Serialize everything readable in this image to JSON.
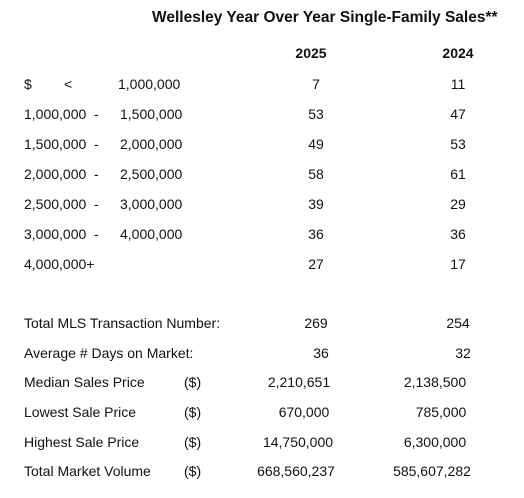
{
  "title": "Wellesley Year Over Year Single-Family Sales**",
  "columns": [
    "2025",
    "2024"
  ],
  "price_ranges": [
    {
      "low": "$",
      "sep": "<",
      "high": "1,000,000",
      "v2025": "7",
      "v2024": "11"
    },
    {
      "low": "1,000,000",
      "sep": "-",
      "high": "1,500,000",
      "v2025": "53",
      "v2024": "47"
    },
    {
      "low": "1,500,000",
      "sep": "-",
      "high": "2,000,000",
      "v2025": "49",
      "v2024": "53"
    },
    {
      "low": "2,000,000",
      "sep": "-",
      "high": "2,500,000",
      "v2025": "58",
      "v2024": "61"
    },
    {
      "low": "2,500,000",
      "sep": "-",
      "high": "3,000,000",
      "v2025": "39",
      "v2024": "29"
    },
    {
      "low": "3,000,000",
      "sep": "-",
      "high": "4,000,000",
      "v2025": "36",
      "v2024": "36"
    },
    {
      "low": "4,000,000+",
      "sep": "",
      "high": "",
      "v2025": "27",
      "v2024": "17"
    }
  ],
  "summary": [
    {
      "label": "Total MLS Transaction Number:",
      "unit": "",
      "v2025": "269",
      "v2024": "254"
    },
    {
      "label": "Average # Days on Market:",
      "unit": "",
      "v2025": "36",
      "v2024": "32"
    },
    {
      "label": "Median Sales Price",
      "unit": "($)",
      "v2025": "2,210,651",
      "v2024": "2,138,500"
    },
    {
      "label": "Lowest Sale Price",
      "unit": "($)",
      "v2025": "670,000",
      "v2024": "785,000"
    },
    {
      "label": "Highest Sale Price",
      "unit": "($)",
      "v2025": "14,750,000",
      "v2024": "6,300,000"
    },
    {
      "label": "Total Market Volume",
      "unit": "($)",
      "v2025": "668,560,237",
      "v2024": "585,607,282"
    }
  ]
}
